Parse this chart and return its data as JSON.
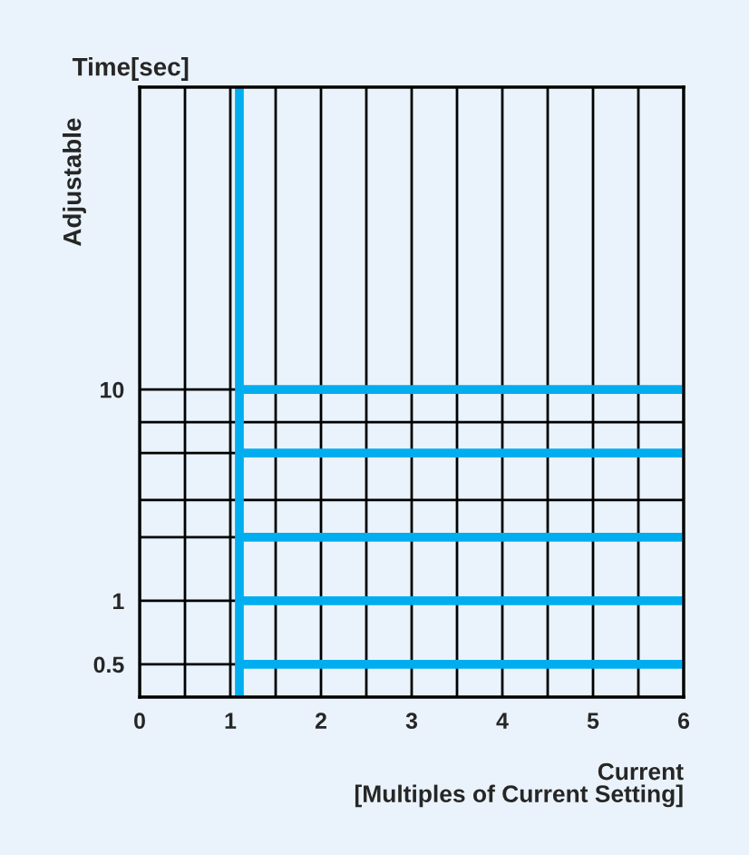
{
  "chart_data": {
    "type": "line",
    "title": "Time[sec]",
    "ylabel": "Adjustable",
    "xlabel": "Current\n[Multiples of Current Setting]",
    "log": "y",
    "xlim": [
      0,
      6
    ],
    "ylim": [
      0.35,
      270
    ],
    "xticks": [
      0,
      {
        "value": 0.5,
        "label": null
      },
      1,
      {
        "value": 1.5,
        "label": null
      },
      2,
      {
        "value": 2.5,
        "label": null
      },
      3,
      {
        "value": 3.5,
        "label": null
      },
      4,
      {
        "value": 4.5,
        "label": null
      },
      5,
      {
        "value": 5.5,
        "label": null
      },
      6
    ],
    "yticks": [
      0.5,
      1,
      {
        "value": 2,
        "label": null
      },
      {
        "value": 3,
        "label": null
      },
      {
        "value": 5,
        "label": null
      },
      {
        "value": 7,
        "label": null
      },
      10
    ],
    "grid": true,
    "line_style": "solid",
    "marker": "none",
    "x": [
      1.1,
      6
    ],
    "ref_lines": [
      {
        "axis": "x",
        "value": 1.1,
        "color": "#00aeef"
      }
    ],
    "series": [
      {
        "color": "#00aeef",
        "values": [
          0.5,
          0.5
        ]
      },
      {
        "color": "#00aeef",
        "values": [
          1,
          1
        ]
      },
      {
        "color": "#00aeef",
        "values": [
          2,
          2
        ]
      },
      {
        "color": "#00aeef",
        "values": [
          5,
          5
        ]
      },
      {
        "color": "#00aeef",
        "values": [
          10,
          10
        ]
      }
    ]
  }
}
